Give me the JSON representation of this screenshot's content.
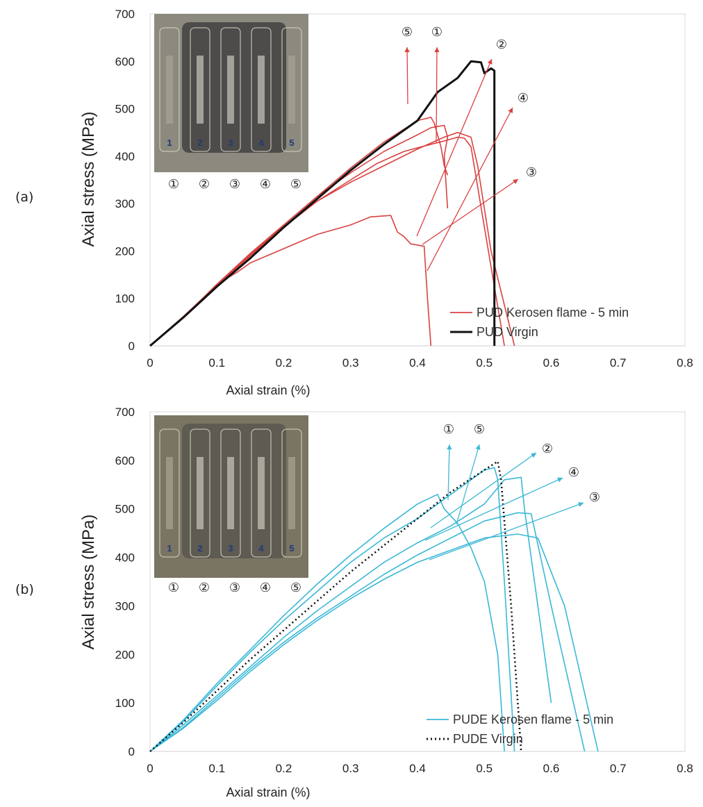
{
  "chart_data": [
    {
      "panel_label": "(a)",
      "type": "line",
      "xlabel": "Axial strain (%)",
      "ylabel": "Axial stress (MPa)",
      "xlim": [
        0,
        0.8
      ],
      "ylim": [
        0,
        700
      ],
      "x_ticks": [
        "0",
        "0.1",
        "0.2",
        "0.3",
        "0.4",
        "0.5",
        "0.6",
        "0.7",
        "0.8"
      ],
      "y_ticks": [
        "0",
        "100",
        "200",
        "300",
        "400",
        "500",
        "600",
        "700"
      ],
      "grid": false,
      "legend_position": "bottom-right",
      "accent_color": "#d9413f",
      "reference_color": "#111111",
      "legend": [
        {
          "label": "PUD Kerosen flame - 5 min",
          "color": "#d9413f",
          "style": "solid"
        },
        {
          "label": "PUD Virgin",
          "color": "#111111",
          "style": "solid-thick"
        }
      ],
      "photo_numbers": [
        "1",
        "2",
        "3",
        "4",
        "5"
      ],
      "series": [
        {
          "specimen": "1",
          "color": "#d9413f",
          "points": [
            [
              0,
              0
            ],
            [
              0.05,
              60
            ],
            [
              0.1,
              130
            ],
            [
              0.15,
              195
            ],
            [
              0.2,
              255
            ],
            [
              0.25,
              315
            ],
            [
              0.3,
              365
            ],
            [
              0.35,
              410
            ],
            [
              0.4,
              445
            ],
            [
              0.42,
              460
            ],
            [
              0.44,
              465
            ],
            [
              0.445,
              440
            ],
            [
              0.44,
              400
            ],
            [
              0.445,
              290
            ]
          ]
        },
        {
          "specimen": "2",
          "color": "#d9413f",
          "points": [
            [
              0,
              0
            ],
            [
              0.05,
              62
            ],
            [
              0.1,
              128
            ],
            [
              0.15,
              190
            ],
            [
              0.2,
              250
            ],
            [
              0.25,
              305
            ],
            [
              0.3,
              350
            ],
            [
              0.34,
              385
            ],
            [
              0.38,
              410
            ],
            [
              0.42,
              425
            ],
            [
              0.44,
              432
            ],
            [
              0.46,
              440
            ],
            [
              0.47,
              438
            ],
            [
              0.48,
              420
            ],
            [
              0.5,
              250
            ],
            [
              0.53,
              0
            ]
          ]
        },
        {
          "specimen": "3",
          "color": "#d9413f",
          "points": [
            [
              0,
              0
            ],
            [
              0.05,
              60
            ],
            [
              0.1,
              130
            ],
            [
              0.13,
              155
            ],
            [
              0.15,
              175
            ],
            [
              0.2,
              205
            ],
            [
              0.25,
              235
            ],
            [
              0.3,
              255
            ],
            [
              0.33,
              272
            ],
            [
              0.36,
              275
            ],
            [
              0.37,
              240
            ],
            [
              0.38,
              230
            ],
            [
              0.39,
              215
            ],
            [
              0.41,
              210
            ],
            [
              0.415,
              100
            ],
            [
              0.42,
              0
            ]
          ]
        },
        {
          "specimen": "4",
          "color": "#d9413f",
          "points": [
            [
              0,
              0
            ],
            [
              0.05,
              62
            ],
            [
              0.1,
              128
            ],
            [
              0.15,
              192
            ],
            [
              0.2,
              252
            ],
            [
              0.25,
              305
            ],
            [
              0.3,
              345
            ],
            [
              0.35,
              380
            ],
            [
              0.4,
              415
            ],
            [
              0.44,
              440
            ],
            [
              0.46,
              450
            ],
            [
              0.48,
              440
            ],
            [
              0.49,
              380
            ],
            [
              0.51,
              200
            ],
            [
              0.545,
              0
            ]
          ]
        },
        {
          "specimen": "5",
          "color": "#d9413f",
          "points": [
            [
              0,
              0
            ],
            [
              0.05,
              62
            ],
            [
              0.1,
              128
            ],
            [
              0.15,
              195
            ],
            [
              0.2,
              255
            ],
            [
              0.25,
              315
            ],
            [
              0.3,
              375
            ],
            [
              0.35,
              430
            ],
            [
              0.4,
              475
            ],
            [
              0.42,
              482
            ],
            [
              0.425,
              470
            ],
            [
              0.435,
              420
            ],
            [
              0.44,
              380
            ],
            [
              0.445,
              360
            ]
          ]
        },
        {
          "specimen": "virgin",
          "color": "#111111",
          "points": [
            [
              0,
              0
            ],
            [
              0.05,
              60
            ],
            [
              0.1,
              125
            ],
            [
              0.15,
              185
            ],
            [
              0.2,
              250
            ],
            [
              0.25,
              310
            ],
            [
              0.3,
              370
            ],
            [
              0.35,
              425
            ],
            [
              0.4,
              475
            ],
            [
              0.43,
              535
            ],
            [
              0.46,
              565
            ],
            [
              0.48,
              600
            ],
            [
              0.495,
              598
            ],
            [
              0.5,
              575
            ],
            [
              0.51,
              585
            ],
            [
              0.515,
              580
            ],
            [
              0.515,
              0
            ]
          ]
        }
      ]
    },
    {
      "panel_label": "(b)",
      "type": "line",
      "xlabel": "Axial strain (%)",
      "ylabel": "Axial stress (MPa)",
      "xlim": [
        0,
        0.8
      ],
      "ylim": [
        0,
        700
      ],
      "x_ticks": [
        "0",
        "0.1",
        "0.2",
        "0.3",
        "0.4",
        "0.5",
        "0.6",
        "0.7",
        "0.8"
      ],
      "y_ticks": [
        "0",
        "100",
        "200",
        "300",
        "400",
        "500",
        "600",
        "700"
      ],
      "grid": false,
      "legend_position": "bottom-right",
      "accent_color": "#3ab8d6",
      "reference_color": "#111111",
      "legend": [
        {
          "label": "PUDE Kerosen flame - 5 min",
          "color": "#3ab8d6",
          "style": "solid"
        },
        {
          "label": "PUDE Virgin",
          "color": "#111111",
          "style": "dotted"
        }
      ],
      "photo_numbers": [
        "1",
        "2",
        "3",
        "4",
        "5"
      ],
      "series": [
        {
          "specimen": "1",
          "color": "#3ab8d6",
          "points": [
            [
              0,
              0
            ],
            [
              0.05,
              65
            ],
            [
              0.1,
              140
            ],
            [
              0.15,
              210
            ],
            [
              0.2,
              280
            ],
            [
              0.25,
              345
            ],
            [
              0.3,
              405
            ],
            [
              0.35,
              460
            ],
            [
              0.4,
              510
            ],
            [
              0.43,
              530
            ],
            [
              0.44,
              500
            ],
            [
              0.46,
              470
            ],
            [
              0.48,
              420
            ],
            [
              0.5,
              350
            ],
            [
              0.52,
              200
            ],
            [
              0.53,
              0
            ]
          ]
        },
        {
          "specimen": "2",
          "color": "#3ab8d6",
          "points": [
            [
              0,
              0
            ],
            [
              0.05,
              55
            ],
            [
              0.1,
              115
            ],
            [
              0.15,
              175
            ],
            [
              0.2,
              235
            ],
            [
              0.25,
              290
            ],
            [
              0.3,
              340
            ],
            [
              0.35,
              390
            ],
            [
              0.4,
              430
            ],
            [
              0.45,
              465
            ],
            [
              0.5,
              510
            ],
            [
              0.53,
              560
            ],
            [
              0.555,
              565
            ],
            [
              0.56,
              500
            ],
            [
              0.6,
              100
            ]
          ]
        },
        {
          "specimen": "3",
          "color": "#3ab8d6",
          "points": [
            [
              0,
              0
            ],
            [
              0.05,
              50
            ],
            [
              0.1,
              110
            ],
            [
              0.15,
              170
            ],
            [
              0.2,
              225
            ],
            [
              0.25,
              275
            ],
            [
              0.3,
              320
            ],
            [
              0.35,
              365
            ],
            [
              0.4,
              405
            ],
            [
              0.45,
              440
            ],
            [
              0.5,
              475
            ],
            [
              0.55,
              492
            ],
            [
              0.57,
              490
            ],
            [
              0.6,
              300
            ],
            [
              0.65,
              0
            ]
          ]
        },
        {
          "specimen": "4",
          "color": "#3ab8d6",
          "points": [
            [
              0,
              0
            ],
            [
              0.05,
              48
            ],
            [
              0.1,
              105
            ],
            [
              0.15,
              165
            ],
            [
              0.2,
              220
            ],
            [
              0.25,
              270
            ],
            [
              0.3,
              315
            ],
            [
              0.35,
              355
            ],
            [
              0.4,
              390
            ],
            [
              0.45,
              415
            ],
            [
              0.5,
              440
            ],
            [
              0.55,
              448
            ],
            [
              0.58,
              440
            ],
            [
              0.62,
              300
            ],
            [
              0.67,
              0
            ]
          ]
        },
        {
          "specimen": "5",
          "color": "#3ab8d6",
          "points": [
            [
              0,
              0
            ],
            [
              0.05,
              62
            ],
            [
              0.1,
              135
            ],
            [
              0.15,
              205
            ],
            [
              0.2,
              270
            ],
            [
              0.25,
              330
            ],
            [
              0.3,
              390
            ],
            [
              0.35,
              440
            ],
            [
              0.4,
              480
            ],
            [
              0.45,
              530
            ],
            [
              0.5,
              580
            ],
            [
              0.515,
              585
            ],
            [
              0.52,
              560
            ],
            [
              0.53,
              350
            ],
            [
              0.545,
              0
            ]
          ]
        },
        {
          "specimen": "virgin",
          "color": "#111111",
          "dotted": true,
          "points": [
            [
              0,
              0
            ],
            [
              0.05,
              60
            ],
            [
              0.1,
              125
            ],
            [
              0.15,
              190
            ],
            [
              0.2,
              250
            ],
            [
              0.25,
              310
            ],
            [
              0.3,
              370
            ],
            [
              0.35,
              425
            ],
            [
              0.4,
              480
            ],
            [
              0.45,
              535
            ],
            [
              0.5,
              580
            ],
            [
              0.52,
              598
            ],
            [
              0.525,
              560
            ],
            [
              0.54,
              300
            ],
            [
              0.555,
              0
            ]
          ]
        }
      ]
    }
  ]
}
